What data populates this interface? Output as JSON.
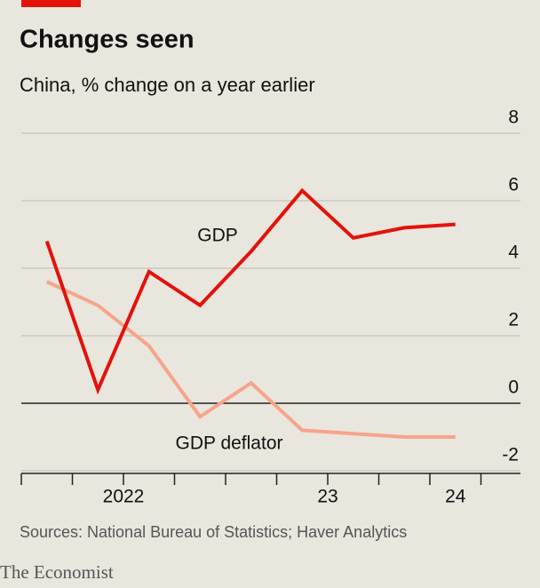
{
  "chart_data": {
    "type": "line",
    "title": "Changes seen",
    "subtitle": "China, % change on a year earlier",
    "categories": [
      "2022",
      null,
      null,
      null,
      "23",
      null,
      null,
      null,
      "24"
    ],
    "series": [
      {
        "name": "GDP",
        "color": "#e3120b",
        "values": [
          4.8,
          0.4,
          3.9,
          2.9,
          4.5,
          6.3,
          4.9,
          5.2,
          5.3
        ]
      },
      {
        "name": "GDP deflator",
        "color": "#f7a48c",
        "values": [
          3.6,
          2.9,
          1.7,
          -0.4,
          0.6,
          -0.8,
          -0.9,
          -1.0,
          -1.0
        ]
      }
    ],
    "ylim": [
      -2,
      8
    ],
    "yticks": [
      -2,
      0,
      2,
      4,
      6,
      8
    ],
    "grid": true,
    "source": "Sources: National Bureau of Statistics; Haver Analytics",
    "brand": "The Economist"
  }
}
